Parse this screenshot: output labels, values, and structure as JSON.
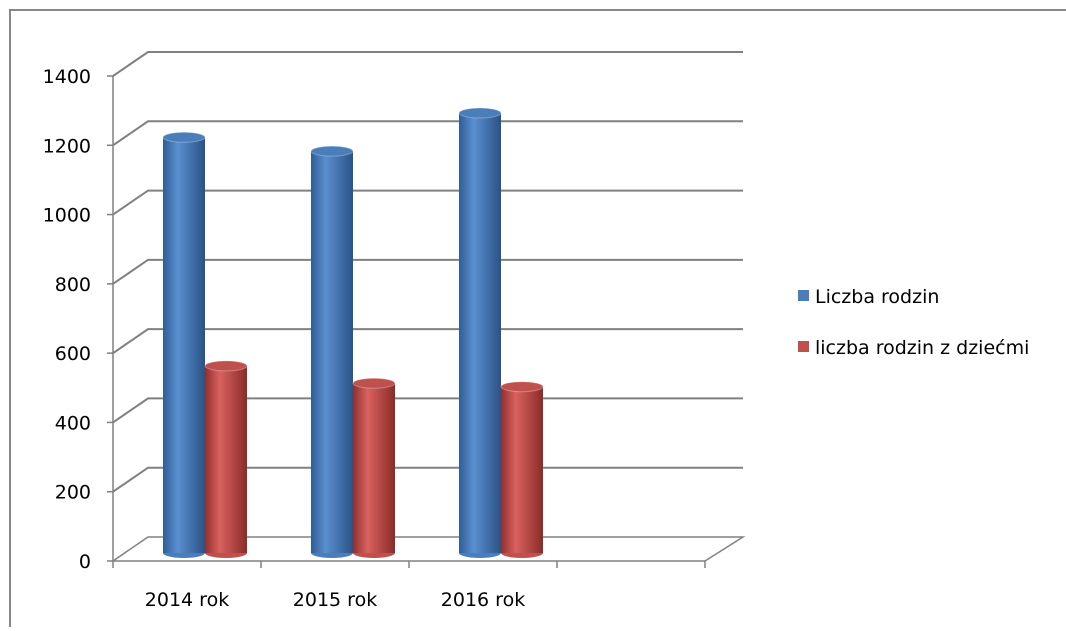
{
  "chart_data": {
    "type": "bar3d",
    "categories": [
      "2014 rok",
      "2015 rok",
      "2016 rok",
      null
    ],
    "series": [
      {
        "name": "Liczba rodzin",
        "color": "#4a7ebb",
        "values": [
          1200,
          1160,
          1270,
          null
        ]
      },
      {
        "name": "liczba rodzin z dziećmi",
        "color": "#c0504d",
        "values": [
          540,
          490,
          480,
          null
        ]
      }
    ],
    "ylim": [
      0,
      1400
    ],
    "yticks": [
      0,
      200,
      400,
      600,
      800,
      1000,
      1200,
      1400
    ],
    "grid": true,
    "legend": "right"
  }
}
